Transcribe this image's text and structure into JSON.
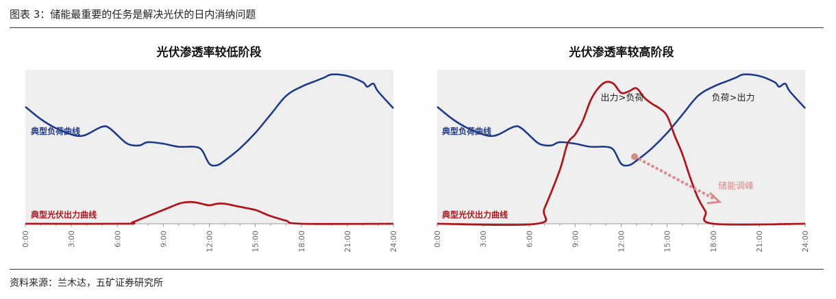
{
  "figure_title": "图表 3：储能最重要的任务是解决光伏的日内消纳问题",
  "source": "资料来源：兰木达，五矿证券研究所",
  "colors": {
    "load": "#1b3a8c",
    "pv": "#b0151b",
    "arrow": "#d98a8a",
    "plot_bg": "#efeff0"
  },
  "chart_data": [
    {
      "type": "line",
      "title": "光伏渗透率较低阶段",
      "x_ticks": [
        "0:00",
        "3:00",
        "6:00",
        "9:00",
        "12:00",
        "15:00",
        "18:00",
        "21:00",
        "24:00"
      ],
      "xlim": [
        0,
        24
      ],
      "ylim": [
        0,
        100
      ],
      "grid": false,
      "series": [
        {
          "name": "典型负荷曲线",
          "color": "#1b3a8c",
          "x": [
            0,
            1,
            2,
            3,
            3.5,
            4,
            5,
            5.5,
            6.5,
            7,
            7.5,
            8,
            9,
            10,
            11,
            11.5,
            12,
            12.5,
            13,
            14,
            15,
            16,
            17,
            18,
            19,
            19.5,
            20,
            21,
            22,
            22.3,
            22.7,
            23,
            24
          ],
          "y": [
            76,
            68,
            62,
            58,
            57,
            58,
            63,
            62,
            53,
            51,
            51,
            53,
            52,
            50,
            50,
            48,
            39,
            38,
            41,
            49,
            59,
            71,
            83,
            89,
            93,
            95,
            97,
            96,
            92,
            89,
            91,
            86,
            75
          ]
        },
        {
          "name": "典型光伏出力曲线",
          "color": "#b0151b",
          "x": [
            0,
            6.5,
            7,
            8,
            9,
            10,
            10.5,
            11,
            11.5,
            12,
            12.5,
            13,
            14,
            15,
            15.5,
            16,
            17,
            18,
            24
          ],
          "y": [
            0,
            0,
            1,
            5,
            9,
            13,
            14,
            14,
            13,
            12,
            13,
            13,
            11,
            9,
            7,
            5,
            2,
            0,
            0
          ]
        }
      ]
    },
    {
      "type": "line",
      "title": "光伏渗透率较高阶段",
      "x_ticks": [
        "0:00",
        "3:00",
        "6:00",
        "9:00",
        "12:00",
        "15:00",
        "18:00",
        "21:00",
        "24:00"
      ],
      "xlim": [
        0,
        24
      ],
      "ylim": [
        0,
        100
      ],
      "grid": false,
      "annotations": [
        "出力>负荷",
        "负荷>出力",
        "储能调峰"
      ],
      "series": [
        {
          "name": "典型负荷曲线",
          "color": "#1b3a8c",
          "x": [
            0,
            1,
            2,
            3,
            3.5,
            4,
            5,
            5.5,
            6.5,
            7,
            7.5,
            8,
            9,
            10,
            11,
            11.5,
            12,
            12.5,
            13,
            14,
            15,
            16,
            17,
            18,
            19,
            19.5,
            20,
            21,
            22,
            22.3,
            22.7,
            23,
            24
          ],
          "y": [
            76,
            68,
            62,
            58,
            57,
            58,
            63,
            62,
            53,
            51,
            51,
            53,
            52,
            50,
            50,
            48,
            39,
            38,
            41,
            49,
            59,
            71,
            83,
            89,
            93,
            95,
            97,
            96,
            92,
            89,
            91,
            86,
            75
          ]
        },
        {
          "name": "典型光伏出力曲线",
          "color": "#b0151b",
          "x": [
            0,
            6.5,
            7,
            8,
            8.5,
            9,
            9.5,
            10,
            10.5,
            11,
            11.5,
            12,
            12.5,
            13,
            13.5,
            14,
            14.5,
            15,
            15.5,
            16,
            16.5,
            17,
            17.5,
            18,
            24
          ],
          "y": [
            0,
            0,
            10,
            35,
            52,
            58,
            67,
            80,
            88,
            92,
            91,
            85,
            86,
            88,
            82,
            78,
            75,
            70,
            57,
            45,
            30,
            17,
            8,
            0,
            0
          ]
        }
      ]
    }
  ]
}
